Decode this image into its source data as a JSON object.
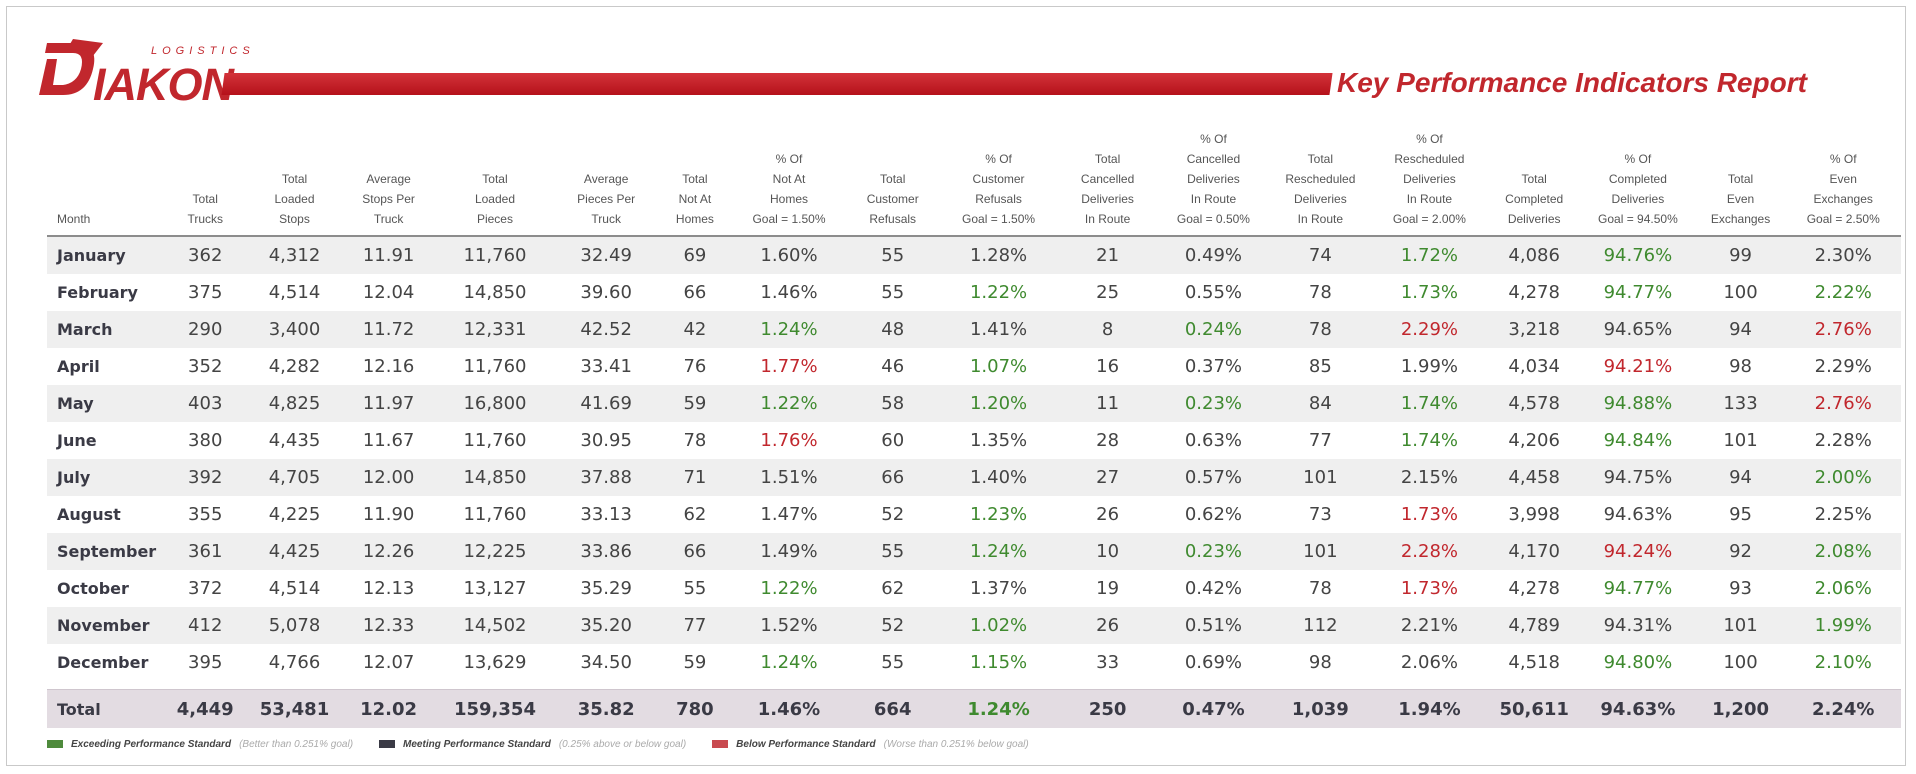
{
  "brand": {
    "tagline": "LOGISTICS",
    "wordmark": "IAKON",
    "logo_name": "DIAKON"
  },
  "report_title": "Key Performance Indicators Report",
  "columns": [
    [
      "Month"
    ],
    [
      "Total",
      "Trucks"
    ],
    [
      "Total",
      "Loaded",
      "Stops"
    ],
    [
      "Average",
      "Stops Per",
      "Truck"
    ],
    [
      "Total",
      "Loaded",
      "Pieces"
    ],
    [
      "Average",
      "Pieces Per",
      "Truck"
    ],
    [
      "Total",
      "Not At",
      "Homes"
    ],
    [
      "% Of",
      "Not At",
      "Homes",
      "Goal = 1.50%"
    ],
    [
      "Total",
      "Customer",
      "Refusals"
    ],
    [
      "% Of",
      "Customer",
      "Refusals",
      "Goal = 1.50%"
    ],
    [
      "Total",
      "Cancelled",
      "Deliveries",
      "In Route"
    ],
    [
      "% Of",
      "Cancelled",
      "Deliveries",
      "In Route",
      "Goal = 0.50%"
    ],
    [
      "Total",
      "Rescheduled",
      "Deliveries",
      "In Route"
    ],
    [
      "% Of",
      "Rescheduled",
      "Deliveries",
      "In Route",
      "Goal = 2.00%"
    ],
    [
      "Total",
      "Completed",
      "Deliveries"
    ],
    [
      "% Of",
      "Completed",
      "Deliveries",
      "Goal = 94.50%"
    ],
    [
      "Total",
      "Even",
      "Exchanges"
    ],
    [
      "% Of",
      "Even",
      "Exchanges",
      "Goal = 2.50%"
    ]
  ],
  "status_colors": {
    "exceed": "#3f8a2f",
    "meet": "#444444",
    "below": "#c1272d"
  },
  "rows": [
    {
      "cells": [
        "January",
        "362",
        "4,312",
        "11.91",
        "11,760",
        "32.49",
        "69",
        "1.60%",
        "55",
        "1.28%",
        "21",
        "0.49%",
        "74",
        "1.72%",
        "4,086",
        "94.76%",
        "99",
        "2.30%"
      ],
      "status": {
        "13": "exceed",
        "15": "exceed"
      }
    },
    {
      "cells": [
        "February",
        "375",
        "4,514",
        "12.04",
        "14,850",
        "39.60",
        "66",
        "1.46%",
        "55",
        "1.22%",
        "25",
        "0.55%",
        "78",
        "1.73%",
        "4,278",
        "94.77%",
        "100",
        "2.22%"
      ],
      "status": {
        "9": "exceed",
        "13": "exceed",
        "15": "exceed",
        "17": "exceed"
      }
    },
    {
      "cells": [
        "March",
        "290",
        "3,400",
        "11.72",
        "12,331",
        "42.52",
        "42",
        "1.24%",
        "48",
        "1.41%",
        "8",
        "0.24%",
        "78",
        "2.29%",
        "3,218",
        "94.65%",
        "94",
        "2.76%"
      ],
      "status": {
        "7": "exceed",
        "11": "exceed",
        "13": "below",
        "17": "below"
      }
    },
    {
      "cells": [
        "April",
        "352",
        "4,282",
        "12.16",
        "11,760",
        "33.41",
        "76",
        "1.77%",
        "46",
        "1.07%",
        "16",
        "0.37%",
        "85",
        "1.99%",
        "4,034",
        "94.21%",
        "98",
        "2.29%"
      ],
      "status": {
        "7": "below",
        "9": "exceed",
        "15": "below"
      }
    },
    {
      "cells": [
        "May",
        "403",
        "4,825",
        "11.97",
        "16,800",
        "41.69",
        "59",
        "1.22%",
        "58",
        "1.20%",
        "11",
        "0.23%",
        "84",
        "1.74%",
        "4,578",
        "94.88%",
        "133",
        "2.76%"
      ],
      "status": {
        "7": "exceed",
        "9": "exceed",
        "11": "exceed",
        "13": "exceed",
        "15": "exceed",
        "17": "below"
      }
    },
    {
      "cells": [
        "June",
        "380",
        "4,435",
        "11.67",
        "11,760",
        "30.95",
        "78",
        "1.76%",
        "60",
        "1.35%",
        "28",
        "0.63%",
        "77",
        "1.74%",
        "4,206",
        "94.84%",
        "101",
        "2.28%"
      ],
      "status": {
        "7": "below",
        "13": "exceed",
        "15": "exceed"
      }
    },
    {
      "cells": [
        "July",
        "392",
        "4,705",
        "12.00",
        "14,850",
        "37.88",
        "71",
        "1.51%",
        "66",
        "1.40%",
        "27",
        "0.57%",
        "101",
        "2.15%",
        "4,458",
        "94.75%",
        "94",
        "2.00%"
      ],
      "status": {
        "17": "exceed"
      }
    },
    {
      "cells": [
        "August",
        "355",
        "4,225",
        "11.90",
        "11,760",
        "33.13",
        "62",
        "1.47%",
        "52",
        "1.23%",
        "26",
        "0.62%",
        "73",
        "1.73%",
        "3,998",
        "94.63%",
        "95",
        "2.25%"
      ],
      "status": {
        "9": "exceed",
        "13": "below"
      }
    },
    {
      "cells": [
        "September",
        "361",
        "4,425",
        "12.26",
        "12,225",
        "33.86",
        "66",
        "1.49%",
        "55",
        "1.24%",
        "10",
        "0.23%",
        "101",
        "2.28%",
        "4,170",
        "94.24%",
        "92",
        "2.08%"
      ],
      "status": {
        "9": "exceed",
        "11": "exceed",
        "13": "below",
        "15": "below",
        "17": "exceed"
      }
    },
    {
      "cells": [
        "October",
        "372",
        "4,514",
        "12.13",
        "13,127",
        "35.29",
        "55",
        "1.22%",
        "62",
        "1.37%",
        "19",
        "0.42%",
        "78",
        "1.73%",
        "4,278",
        "94.77%",
        "93",
        "2.06%"
      ],
      "status": {
        "7": "exceed",
        "13": "below",
        "15": "exceed",
        "17": "exceed"
      }
    },
    {
      "cells": [
        "November",
        "412",
        "5,078",
        "12.33",
        "14,502",
        "35.20",
        "77",
        "1.52%",
        "52",
        "1.02%",
        "26",
        "0.51%",
        "112",
        "2.21%",
        "4,789",
        "94.31%",
        "101",
        "1.99%"
      ],
      "status": {
        "9": "exceed",
        "17": "exceed"
      }
    },
    {
      "cells": [
        "December",
        "395",
        "4,766",
        "12.07",
        "13,629",
        "34.50",
        "59",
        "1.24%",
        "55",
        "1.15%",
        "33",
        "0.69%",
        "98",
        "2.06%",
        "4,518",
        "94.80%",
        "100",
        "2.10%"
      ],
      "status": {
        "7": "exceed",
        "9": "exceed",
        "15": "exceed",
        "17": "exceed"
      }
    }
  ],
  "total": {
    "cells": [
      "Total",
      "4,449",
      "53,481",
      "12.02",
      "159,354",
      "35.82",
      "780",
      "1.46%",
      "664",
      "1.24%",
      "250",
      "0.47%",
      "1,039",
      "1.94%",
      "50,611",
      "94.63%",
      "1,200",
      "2.24%"
    ],
    "status": {
      "9": "exceed"
    }
  },
  "legend": [
    {
      "label": "Exceeding Performance Standard",
      "note": "(Better than 0.251% goal)",
      "color": "#4e8a3c"
    },
    {
      "label": "Meeting Performance Standard",
      "note": "(0.25% above or below goal)",
      "color": "#3a3a45"
    },
    {
      "label": "Below Performance Standard",
      "note": "(Worse than 0.251% below goal)",
      "color": "#c94a50"
    }
  ]
}
